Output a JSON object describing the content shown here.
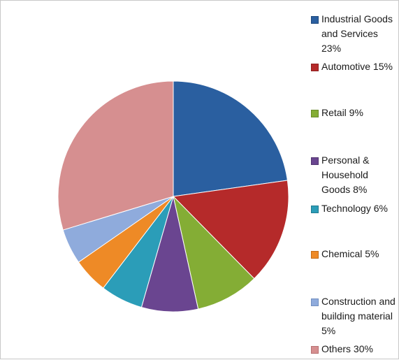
{
  "chart_data": {
    "type": "pie",
    "title": "",
    "start_angle_deg": 0,
    "direction": "clockwise",
    "legend_position": "right",
    "slices": [
      {
        "label": "Industrial Goods and Services",
        "value": 23,
        "legend_text": "Industrial Goods and Services 23%",
        "color": "#2a5fa0",
        "edge": "#1f4a7e"
      },
      {
        "label": "Automotive",
        "value": 15,
        "legend_text": "Automotive 15%",
        "color": "#b52a2a",
        "edge": "#8e1f1f"
      },
      {
        "label": "Retail",
        "value": 9,
        "legend_text": "Retail 9%",
        "color": "#84ad35",
        "edge": "#688a29"
      },
      {
        "label": "Personal & Household Goods",
        "value": 8,
        "legend_text": "Personal & Household Goods 8%",
        "color": "#6a4590",
        "edge": "#523570"
      },
      {
        "label": "Technology",
        "value": 6,
        "legend_text": "Technology 6%",
        "color": "#2b9db8",
        "edge": "#217b90"
      },
      {
        "label": "Chemical",
        "value": 5,
        "legend_text": "Chemical 5%",
        "color": "#ee8a26",
        "edge": "#c46d18"
      },
      {
        "label": "Construction and building material",
        "value": 5,
        "legend_text": "Construction and building material 5%",
        "color": "#8fabdc",
        "edge": "#7290c0"
      },
      {
        "label": "Others",
        "value": 30,
        "legend_text": "Others 30%",
        "color": "#d68f90",
        "edge": "#b87273"
      }
    ]
  }
}
